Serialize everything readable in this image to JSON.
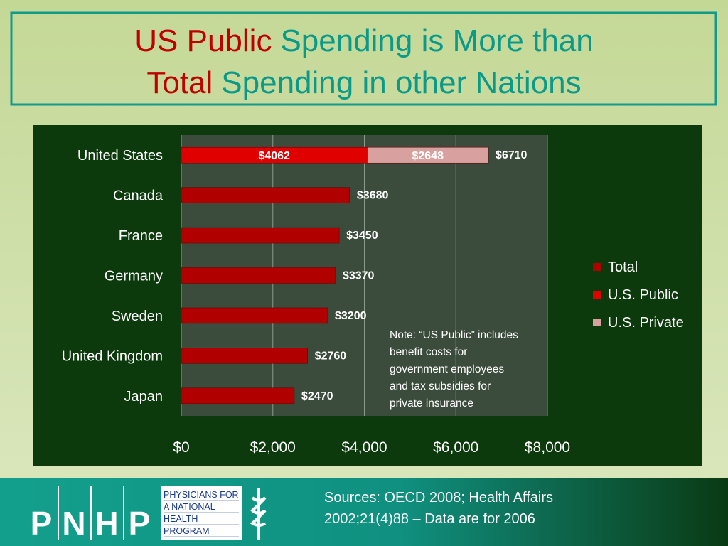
{
  "title": {
    "line1": [
      {
        "text": "US Public",
        "color": "#c00000"
      },
      {
        "text": "Spending is More than",
        "color": "#0a9a8a"
      }
    ],
    "line2": [
      {
        "text": "Total",
        "color": "#c00000"
      },
      {
        "text": "Spending in other Nations",
        "color": "#0a9a8a"
      }
    ]
  },
  "chart_data": {
    "type": "stacked_barh",
    "categories": [
      "United States",
      "Canada",
      "France",
      "Germany",
      "Sweden",
      "United Kingdom",
      "Japan"
    ],
    "series": [
      {
        "name": "Total",
        "color": "#b00000",
        "values": [
          6710,
          3680,
          3450,
          3370,
          3200,
          2760,
          2470
        ],
        "value_labels": [
          "$6710",
          "$3680",
          "$3450",
          "$3370",
          "$3200",
          "$2760",
          "$2470"
        ]
      },
      {
        "name": "U.S. Public",
        "color": "#e00000",
        "values": [
          4062,
          null,
          null,
          null,
          null,
          null,
          null
        ],
        "value_labels": [
          "$4062",
          null,
          null,
          null,
          null,
          null,
          null
        ]
      },
      {
        "name": "U.S. Private",
        "color": "#d9a0a0",
        "values": [
          2648,
          null,
          null,
          null,
          null,
          null,
          null
        ],
        "value_labels": [
          "$2648",
          null,
          null,
          null,
          null,
          null,
          null
        ]
      }
    ],
    "xlim": [
      0,
      8000
    ],
    "xticks": [
      {
        "value": 0,
        "label": "$0"
      },
      {
        "value": 2000,
        "label": "$2,000"
      },
      {
        "value": 4000,
        "label": "$4,000"
      },
      {
        "value": 6000,
        "label": "$6,000"
      },
      {
        "value": 8000,
        "label": "$8,000"
      }
    ],
    "grid": true,
    "legend": "right",
    "annotation": [
      "Note: “US Public” includes",
      "benefit costs for",
      "government employees",
      "and tax subsidies for",
      "private insurance"
    ]
  },
  "footer": {
    "logo_letters": [
      "P",
      "N",
      "H",
      "P"
    ],
    "logo_text": [
      "PHYSICIANS FOR",
      "A NATIONAL",
      "HEALTH",
      "PROGRAM"
    ],
    "sources": [
      "Sources: OECD 2008; Health Affairs",
      "2002;21(4)88 – Data are for 2006"
    ]
  }
}
